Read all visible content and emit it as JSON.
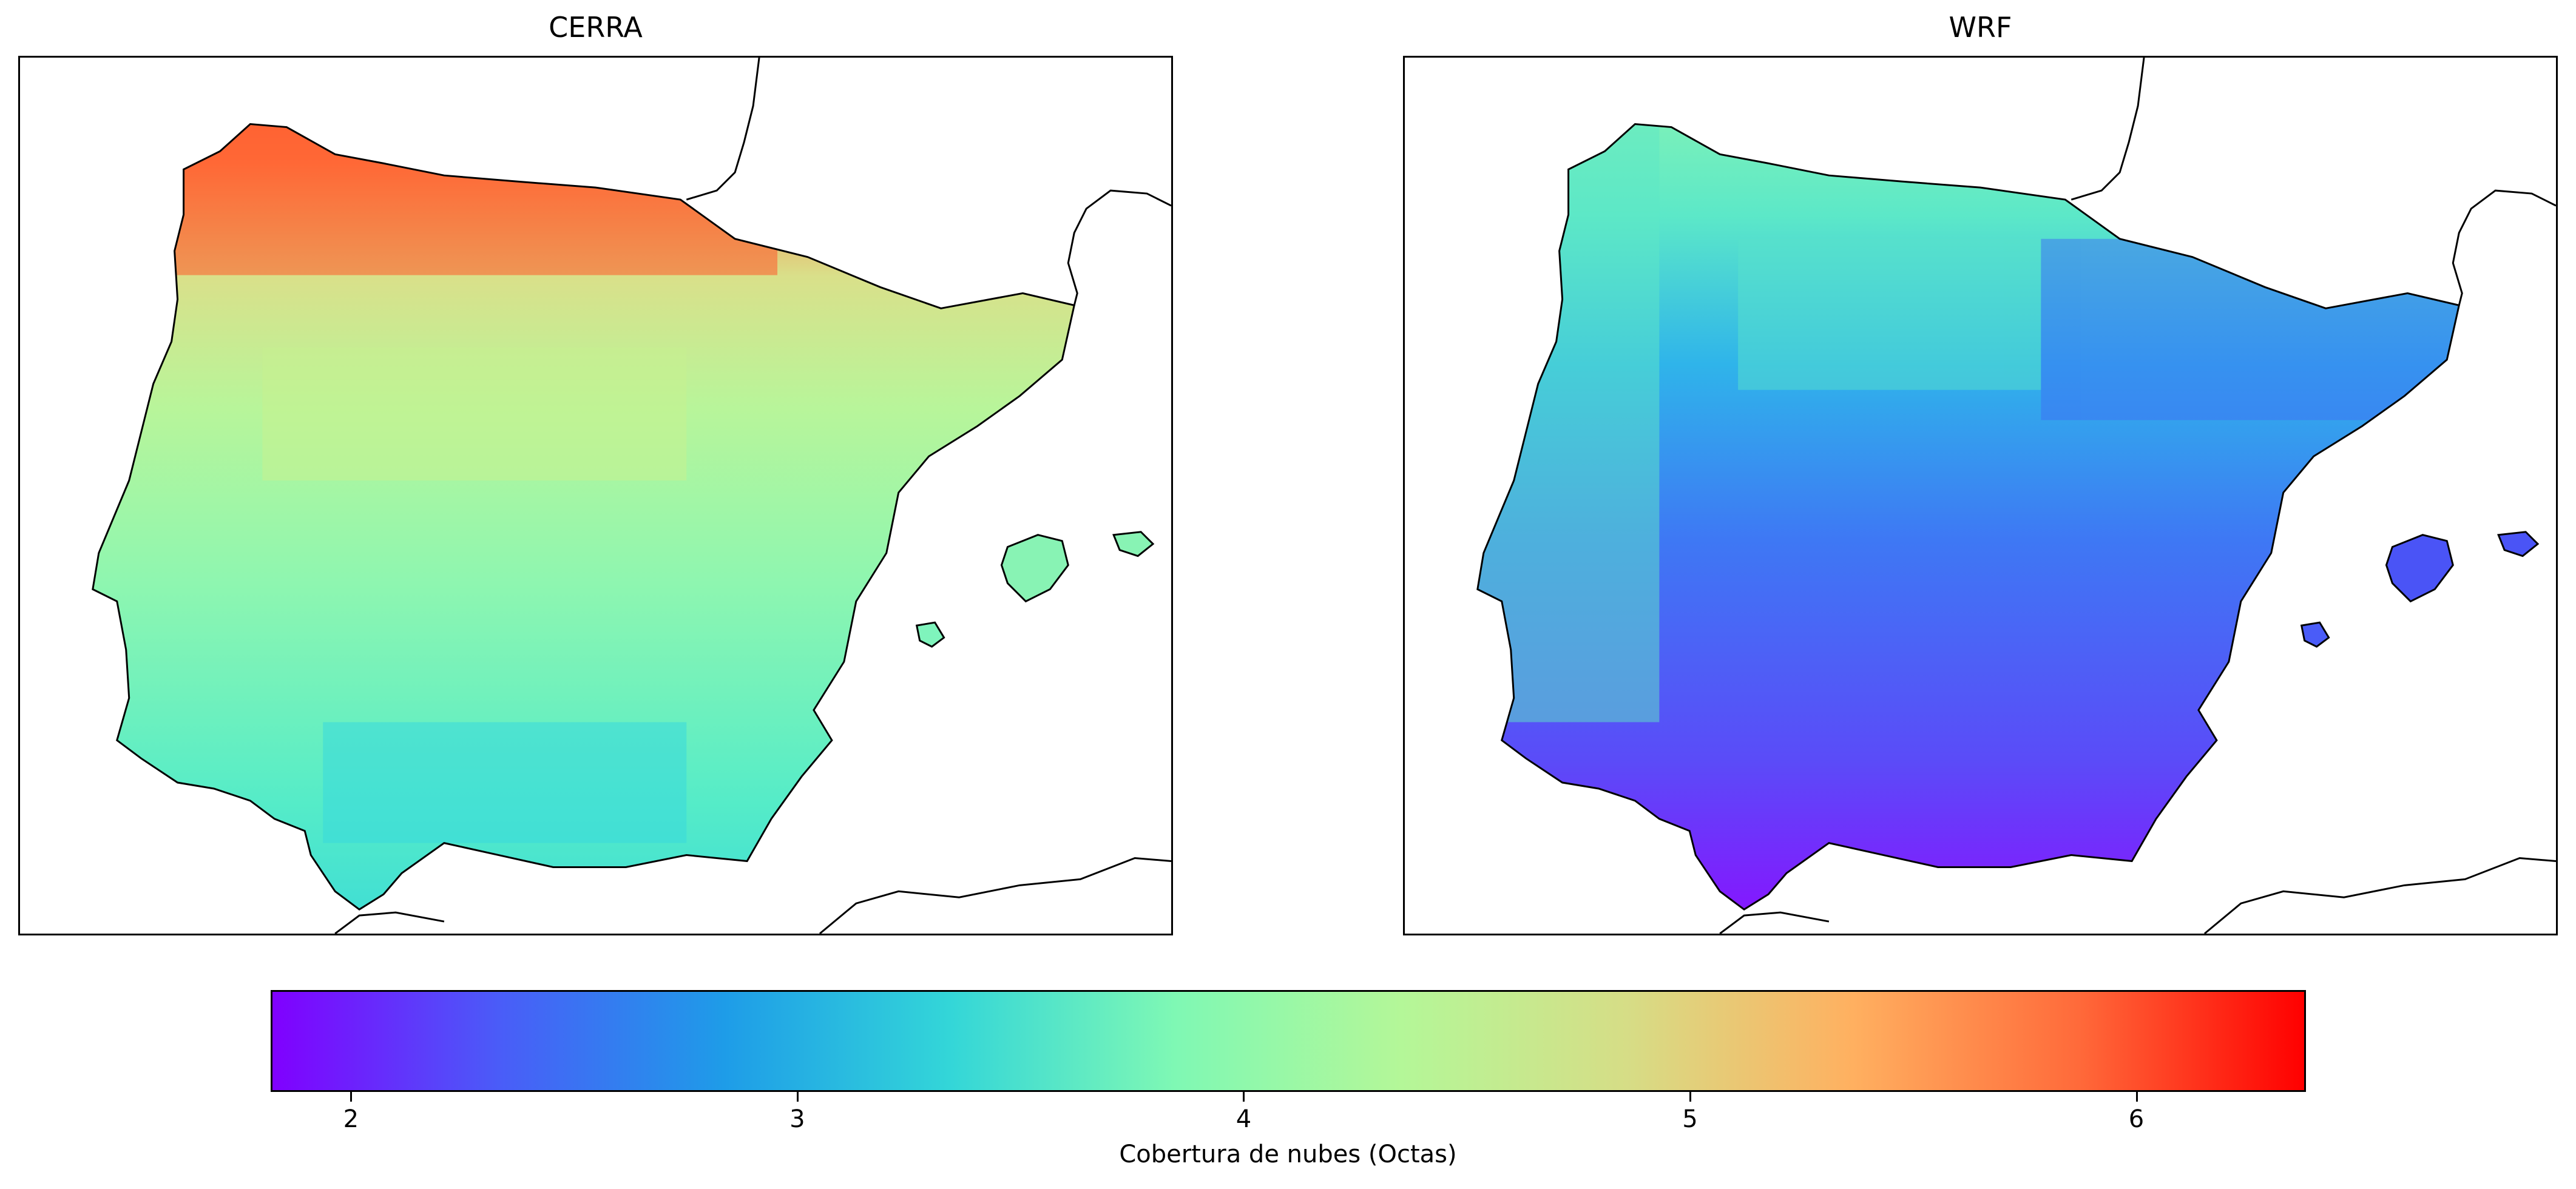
{
  "panels": [
    {
      "title": "CERRA",
      "scheme": "cerra"
    },
    {
      "title": "WRF",
      "scheme": "wrf"
    }
  ],
  "colorbar": {
    "label": "Cobertura de nubes (Octas)",
    "min": 1.82,
    "max": 6.38,
    "ticks": [
      "2",
      "3",
      "4",
      "5",
      "6"
    ],
    "colormap": "rainbow",
    "stops": [
      "#8000ff",
      "#4a5cf8",
      "#1e9ce8",
      "#33d6d8",
      "#7ff8b4",
      "#b4f798",
      "#d6dd86",
      "#ffb060",
      "#ff6a3a",
      "#ff0000"
    ]
  },
  "colors": {
    "coastline": "#000000",
    "cerra_north": "#ff6a3a",
    "cerra_mid": "#b4f798",
    "cerra_south": "#33d6d8",
    "wrf_north": "#7ff8b4",
    "wrf_mid": "#2f8ef0",
    "wrf_south": "#7a2cff"
  }
}
